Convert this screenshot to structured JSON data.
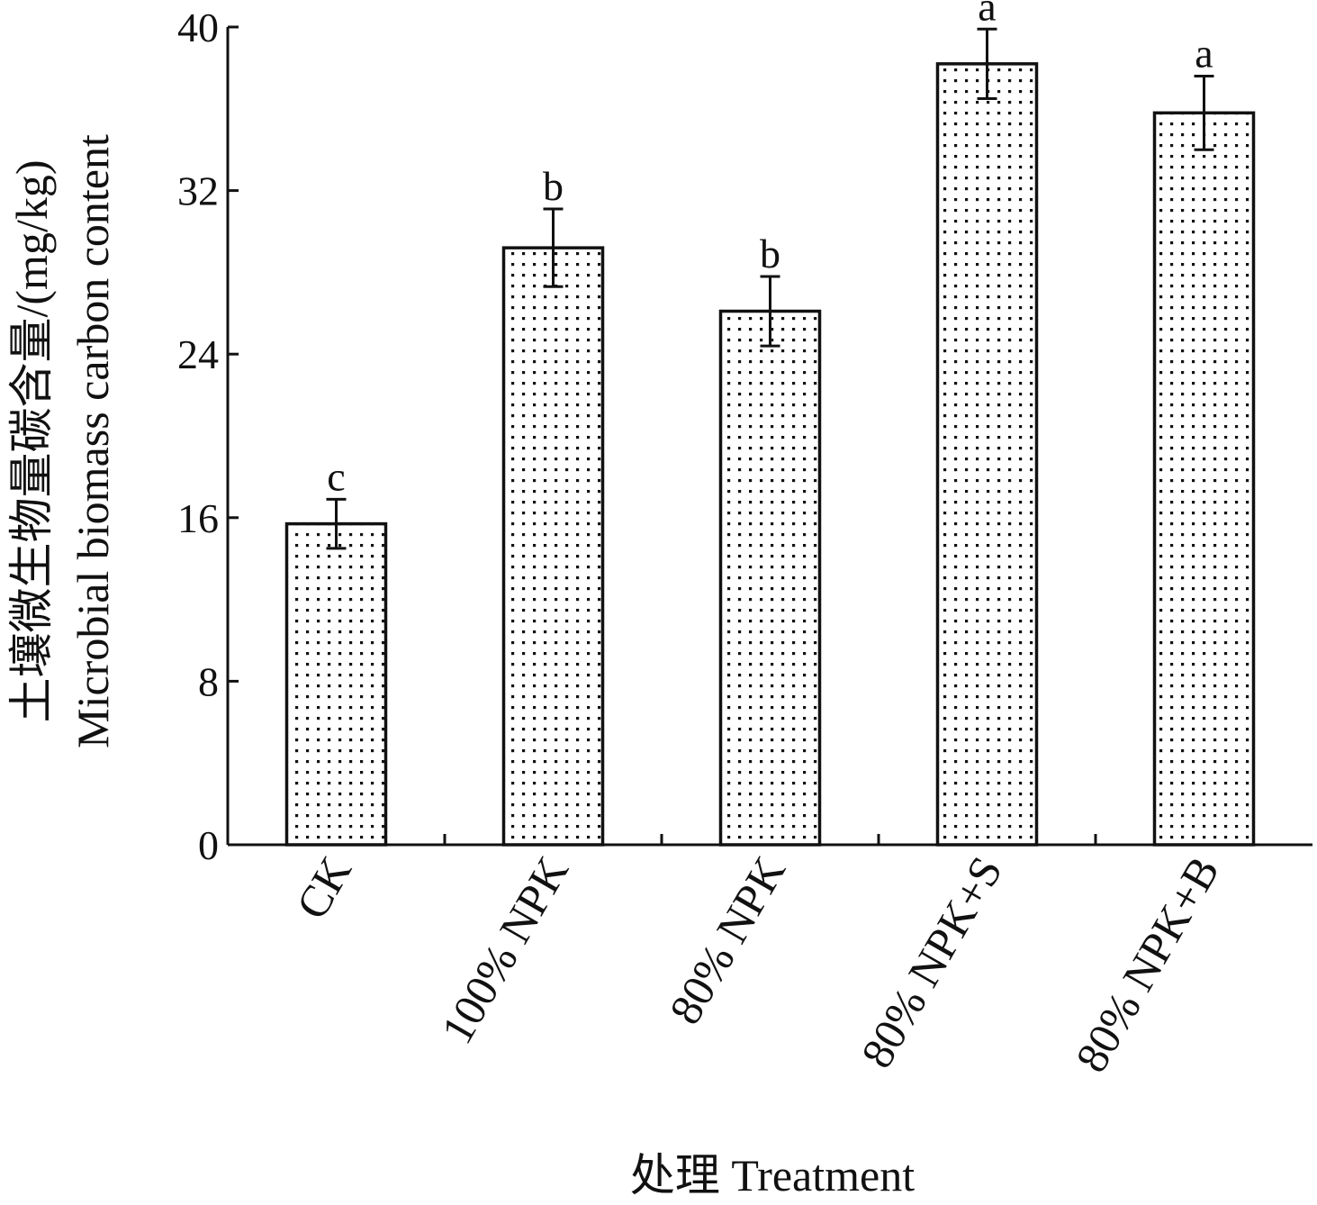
{
  "chart_data": {
    "type": "bar",
    "title": "",
    "ylabel_line1": "土壤微生物量碳含量/(mg/kg)",
    "ylabel_line2": "Microbial biomass  carbon content",
    "xlabel": "处理 Treatment",
    "ylim": [
      0,
      40
    ],
    "yticks": [
      "0",
      "8",
      "16",
      "24",
      "32",
      "40"
    ],
    "categories": [
      "CK",
      "100% NPK",
      "80% NPK",
      "80% NPK+S",
      "80% NPK+B"
    ],
    "values": [
      15.7,
      29.2,
      26.1,
      38.2,
      35.8
    ],
    "errors": [
      1.2,
      1.9,
      1.7,
      1.7,
      1.8
    ],
    "significance": [
      "c",
      "b",
      "b",
      "a",
      "a"
    ],
    "bar_pattern": "dotted",
    "grid": false,
    "legend": "none"
  }
}
